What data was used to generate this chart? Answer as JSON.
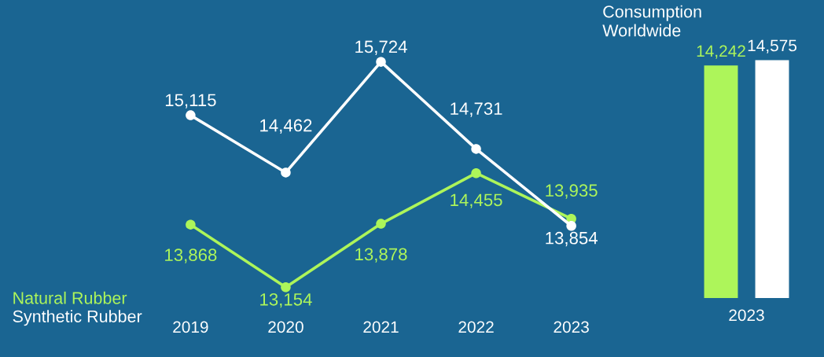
{
  "chart_data": [
    {
      "type": "line",
      "categories": [
        "2019",
        "2020",
        "2021",
        "2022",
        "2023"
      ],
      "series": [
        {
          "name": "Natural Rubber",
          "color": "#adf55a",
          "values": [
            13868,
            13154,
            13878,
            14455,
            13935
          ],
          "value_labels": [
            "13,868",
            "13,154",
            "13,878",
            "14,455",
            "13,935"
          ]
        },
        {
          "name": "Synthetic Rubber",
          "color": "#ffffff",
          "values": [
            15115,
            14462,
            15724,
            14731,
            13854
          ],
          "value_labels": [
            "15,115",
            "14,462",
            "15,724",
            "14,731",
            "13,854"
          ]
        }
      ],
      "marker": "circle",
      "line_style": "solid",
      "legend": "bottom left",
      "tick_labels": "x"
    },
    {
      "type": "bar",
      "title": "Consumption Worldwide",
      "categories": [
        "2023"
      ],
      "series": [
        {
          "color": "#adf55a",
          "values": [
            14242
          ],
          "value_labels": [
            "14,242"
          ]
        },
        {
          "color": "#ffffff",
          "values": [
            14575
          ],
          "value_labels": [
            "14,575"
          ]
        }
      ],
      "tick_labels": "x"
    }
  ]
}
